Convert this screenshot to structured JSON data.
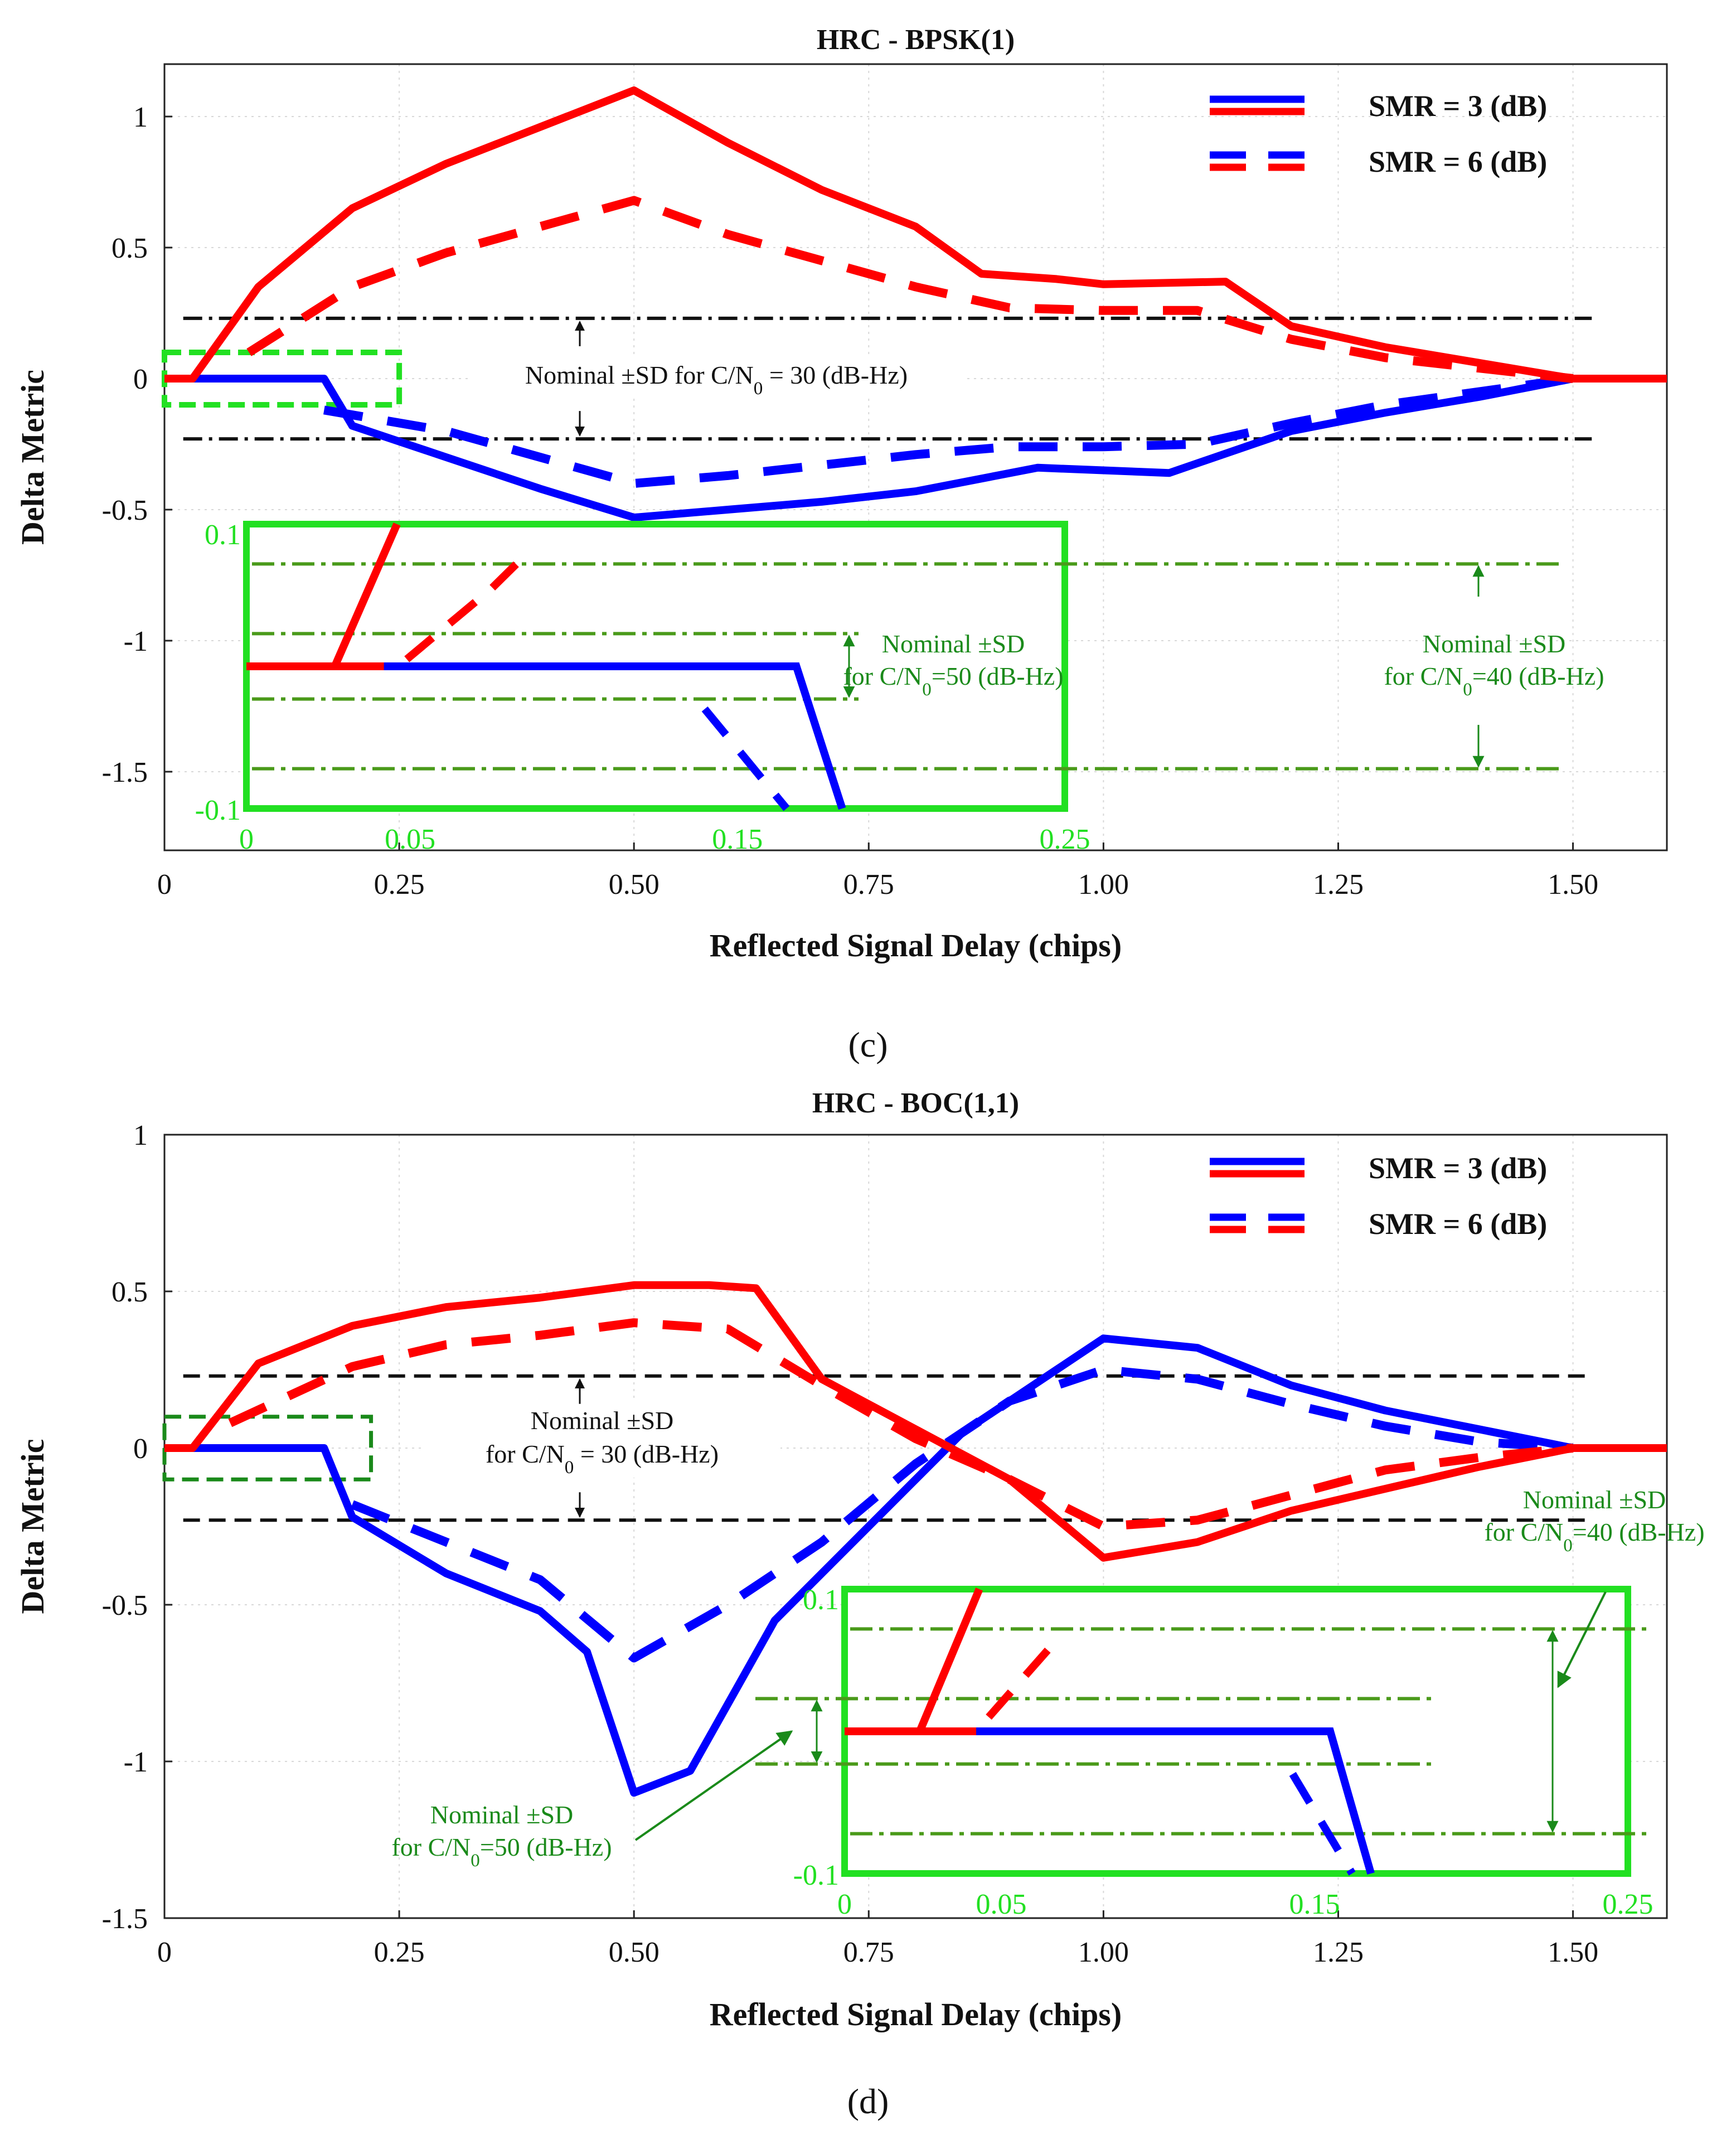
{
  "chart_data": [
    {
      "type": "line",
      "title": "HRC - BPSK(1)",
      "xlabel": "Reflected Signal Delay (chips)",
      "ylabel": "Delta Metric",
      "xlim": [
        0,
        1.6
      ],
      "ylim": [
        -1.8,
        1.2
      ],
      "xticks": [
        0,
        0.25,
        0.5,
        0.75,
        1.0,
        1.25,
        1.5
      ],
      "xtick_labels": [
        "0",
        "0.25",
        "0.50",
        "0.75",
        "1.00",
        "1.25",
        "1.50"
      ],
      "yticks": [
        1,
        0.5,
        0,
        -0.5,
        -1,
        -1.5
      ],
      "ytick_labels": [
        "1",
        "0.5",
        "0",
        "-0.5",
        "-1",
        "-1.5"
      ],
      "grid": true,
      "legend": {
        "position": "top-right",
        "entries": [
          {
            "label": "SMR = 3 (dB)",
            "style": "solid"
          },
          {
            "label": "SMR = 6 (dB)",
            "style": "dashed"
          }
        ]
      },
      "series": [
        {
          "name": "SMR = 3 (dB) red",
          "color": "#ff0000",
          "dash": "solid",
          "x": [
            0,
            0.03,
            0.1,
            0.2,
            0.3,
            0.4,
            0.5,
            0.6,
            0.7,
            0.8,
            0.87,
            0.95,
            1.0,
            1.13,
            1.2,
            1.3,
            1.4,
            1.5,
            1.6
          ],
          "y": [
            0,
            0,
            0.35,
            0.65,
            0.82,
            0.96,
            1.1,
            0.9,
            0.72,
            0.58,
            0.4,
            0.38,
            0.36,
            0.37,
            0.2,
            0.12,
            0.06,
            0,
            0
          ]
        },
        {
          "name": "SMR = 6 (dB) red",
          "color": "#ff0000",
          "dash": "dashed",
          "x": [
            0.09,
            0.2,
            0.3,
            0.4,
            0.5,
            0.6,
            0.7,
            0.8,
            0.9,
            1.0,
            1.1,
            1.2,
            1.3,
            1.4,
            1.5
          ],
          "y": [
            0.1,
            0.35,
            0.48,
            0.58,
            0.68,
            0.55,
            0.45,
            0.35,
            0.27,
            0.26,
            0.26,
            0.15,
            0.08,
            0.04,
            0
          ]
        },
        {
          "name": "SMR = 3 (dB) blue",
          "color": "#0000ff",
          "dash": "solid",
          "x": [
            0,
            0.17,
            0.2,
            0.3,
            0.4,
            0.5,
            0.6,
            0.7,
            0.8,
            0.93,
            1.0,
            1.07,
            1.2,
            1.3,
            1.4,
            1.5,
            1.6
          ],
          "y": [
            0,
            0,
            -0.18,
            -0.3,
            -0.42,
            -0.53,
            -0.5,
            -0.47,
            -0.43,
            -0.34,
            -0.35,
            -0.36,
            -0.2,
            -0.13,
            -0.07,
            0,
            0
          ]
        },
        {
          "name": "SMR = 6 (dB) blue",
          "color": "#0000ff",
          "dash": "dashed",
          "x": [
            0.17,
            0.3,
            0.4,
            0.5,
            0.6,
            0.7,
            0.8,
            0.9,
            1.0,
            1.1,
            1.2,
            1.3,
            1.4,
            1.5
          ],
          "y": [
            -0.12,
            -0.2,
            -0.3,
            -0.4,
            -0.37,
            -0.33,
            -0.29,
            -0.26,
            -0.26,
            -0.25,
            -0.17,
            -0.1,
            -0.05,
            0
          ]
        }
      ],
      "sd_lines": {
        "cn0": 30,
        "value": 0.23
      },
      "annotation": "Nominal ±SD  for C/N0 = 30 (dB-Hz)",
      "inset": {
        "xlim": [
          0,
          0.25
        ],
        "ylim": [
          -0.1,
          0.1
        ],
        "xtick_labels": [
          "0",
          "0.05",
          "0.15",
          "0.25"
        ],
        "ytick_labels": [
          "0.1",
          "-0.1"
        ],
        "sd_40": 0.072,
        "sd_50": 0.023,
        "annotation_50": [
          "Nominal ±SD",
          "for C/N0=50 (dB-Hz)"
        ],
        "annotation_40": [
          "Nominal ±SD",
          "for C/N0=40 (dB-Hz)"
        ]
      },
      "caption": "(c)"
    },
    {
      "type": "line",
      "title": "HRC - BOC(1,1)",
      "xlabel": "Reflected Signal Delay (chips)",
      "ylabel": "Delta Metric",
      "xlim": [
        0,
        1.6
      ],
      "ylim": [
        -1.5,
        1.0
      ],
      "xticks": [
        0,
        0.25,
        0.5,
        0.75,
        1.0,
        1.25,
        1.5
      ],
      "xtick_labels": [
        "0",
        "0.25",
        "0.50",
        "0.75",
        "1.00",
        "1.25",
        "1.50"
      ],
      "yticks": [
        1,
        0.5,
        0,
        -0.5,
        -1,
        -1.5
      ],
      "ytick_labels": [
        "1",
        "0.5",
        "0",
        "-0.5",
        "-1",
        "-1.5"
      ],
      "grid": true,
      "legend": {
        "position": "top-right",
        "entries": [
          {
            "label": "SMR = 3 (dB)",
            "style": "solid"
          },
          {
            "label": "SMR = 6 (dB)",
            "style": "dashed"
          }
        ]
      },
      "series": [
        {
          "name": "SMR = 3 (dB) red",
          "color": "#ff0000",
          "dash": "solid",
          "x": [
            0,
            0.03,
            0.1,
            0.2,
            0.3,
            0.4,
            0.5,
            0.58,
            0.63,
            0.7,
            0.8,
            0.9,
            1.0,
            1.1,
            1.2,
            1.3,
            1.4,
            1.5,
            1.6
          ],
          "y": [
            0,
            0,
            0.27,
            0.39,
            0.45,
            0.48,
            0.52,
            0.52,
            0.51,
            0.22,
            0.06,
            -0.1,
            -0.35,
            -0.3,
            -0.2,
            -0.13,
            -0.06,
            0,
            0
          ]
        },
        {
          "name": "SMR = 6 (dB) red",
          "color": "#ff0000",
          "dash": "dashed",
          "x": [
            0.07,
            0.2,
            0.3,
            0.4,
            0.5,
            0.6,
            0.7,
            0.8,
            0.9,
            1.0,
            1.1,
            1.2,
            1.3,
            1.4,
            1.5
          ],
          "y": [
            0.08,
            0.26,
            0.33,
            0.36,
            0.4,
            0.38,
            0.2,
            0.03,
            -0.1,
            -0.25,
            -0.23,
            -0.15,
            -0.07,
            -0.03,
            0
          ]
        },
        {
          "name": "SMR = 3 (dB) blue",
          "color": "#0000ff",
          "dash": "solid",
          "x": [
            0,
            0.17,
            0.2,
            0.3,
            0.4,
            0.45,
            0.5,
            0.56,
            0.65,
            0.75,
            0.85,
            0.95,
            1.0,
            1.1,
            1.2,
            1.3,
            1.4,
            1.5,
            1.6
          ],
          "y": [
            0,
            0,
            -0.22,
            -0.4,
            -0.52,
            -0.65,
            -1.1,
            -1.03,
            -0.55,
            -0.25,
            0.05,
            0.25,
            0.35,
            0.32,
            0.2,
            0.12,
            0.06,
            0,
            0
          ]
        },
        {
          "name": "SMR = 6 (dB) blue",
          "color": "#0000ff",
          "dash": "dashed",
          "x": [
            0.2,
            0.3,
            0.4,
            0.5,
            0.6,
            0.7,
            0.8,
            0.9,
            1.0,
            1.1,
            1.2,
            1.3,
            1.4,
            1.5
          ],
          "y": [
            -0.18,
            -0.3,
            -0.42,
            -0.67,
            -0.5,
            -0.3,
            -0.05,
            0.15,
            0.25,
            0.22,
            0.14,
            0.07,
            0.02,
            0
          ]
        }
      ],
      "sd_lines": {
        "cn0": 30,
        "value": 0.23
      },
      "annotation": [
        "Nominal ±SD",
        "for C/N0 = 30 (dB-Hz)"
      ],
      "inset": {
        "xlim": [
          0,
          0.25
        ],
        "ylim": [
          -0.1,
          0.1
        ],
        "xtick_labels": [
          "0",
          "0.05",
          "0.15",
          "0.25"
        ],
        "ytick_labels": [
          "0.1",
          "-0.1"
        ],
        "sd_40": 0.072,
        "sd_50": 0.023,
        "annotation_50": [
          "Nominal ±SD",
          "for C/N0=50 (dB-Hz)"
        ],
        "annotation_40": [
          "Nominal ±SD",
          "for C/N0=40 (dB-Hz)"
        ]
      },
      "caption": "(d)"
    }
  ]
}
